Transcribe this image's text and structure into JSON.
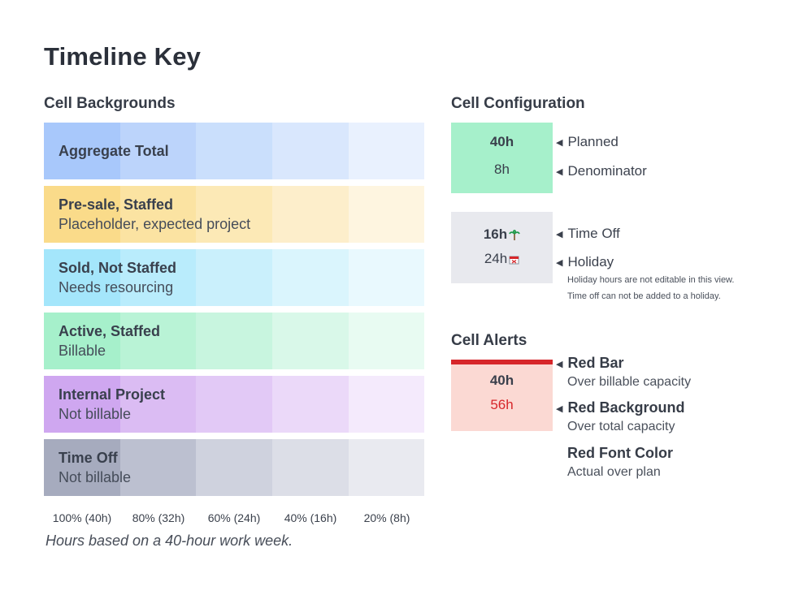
{
  "title": "Timeline Key",
  "cell_backgrounds": {
    "heading": "Cell Backgrounds",
    "rows": [
      {
        "title": "Aggregate Total",
        "subtitle": "",
        "colors": [
          "#a8c8fb",
          "#bcd4fb",
          "#cadffc",
          "#d9e7fd",
          "#e9f1fe"
        ]
      },
      {
        "title": "Pre-sale, Staffed",
        "subtitle": "Placeholder, expected project",
        "colors": [
          "#fadb8a",
          "#fbe3a2",
          "#fce9b6",
          "#fdeecb",
          "#fef5e0"
        ]
      },
      {
        "title": "Sold, Not Staffed",
        "subtitle": "Needs resourcing",
        "colors": [
          "#a4e6fb",
          "#b9ecfc",
          "#caf0fc",
          "#daf5fd",
          "#e9f9fe"
        ]
      },
      {
        "title": "Active, Staffed",
        "subtitle": "Billable",
        "colors": [
          "#a6f0cb",
          "#b9f3d6",
          "#c8f5df",
          "#d9f8e9",
          "#e8fbf2"
        ]
      },
      {
        "title": "Internal Project",
        "subtitle": "Not billable",
        "colors": [
          "#cfa7f0",
          "#dbbcf3",
          "#e2c9f6",
          "#ebd9f9",
          "#f4eafc"
        ]
      },
      {
        "title": "Time Off",
        "subtitle": "Not billable",
        "colors": [
          "#a6abbe",
          "#bcc0d0",
          "#cfd2de",
          "#dcdee7",
          "#e9eaf0"
        ]
      }
    ],
    "percentages": [
      "100% (40h)",
      "80% (32h)",
      "60% (24h)",
      "40% (16h)",
      "20% (8h)"
    ],
    "note": "Hours based on a 40-hour work week."
  },
  "cell_configuration": {
    "heading": "Cell Configuration",
    "planned_value": "40h",
    "denominator_value": "8h",
    "planned_label": "Planned",
    "denominator_label": "Denominator",
    "cell1_color": "#a6f0cb",
    "timeoff_value": "16h",
    "holiday_value": "24h",
    "timeoff_label": "Time Off",
    "holiday_label": "Holiday",
    "cell2_color": "#e8e9ee",
    "note1": "Holiday hours are not editable in this view.",
    "note2": "Time off can not be added to a holiday."
  },
  "cell_alerts": {
    "heading": "Cell Alerts",
    "value_top": "40h",
    "value_bottom": "56h",
    "cell_color": "#fbd9d3",
    "bar_color": "#d7262a",
    "red_bar": "Red Bar",
    "red_bar_desc": "Over billable capacity",
    "red_background": "Red Background",
    "red_background_desc": "Over total capacity",
    "red_font": "Red Font Color",
    "red_font_desc": "Actual over plan"
  }
}
